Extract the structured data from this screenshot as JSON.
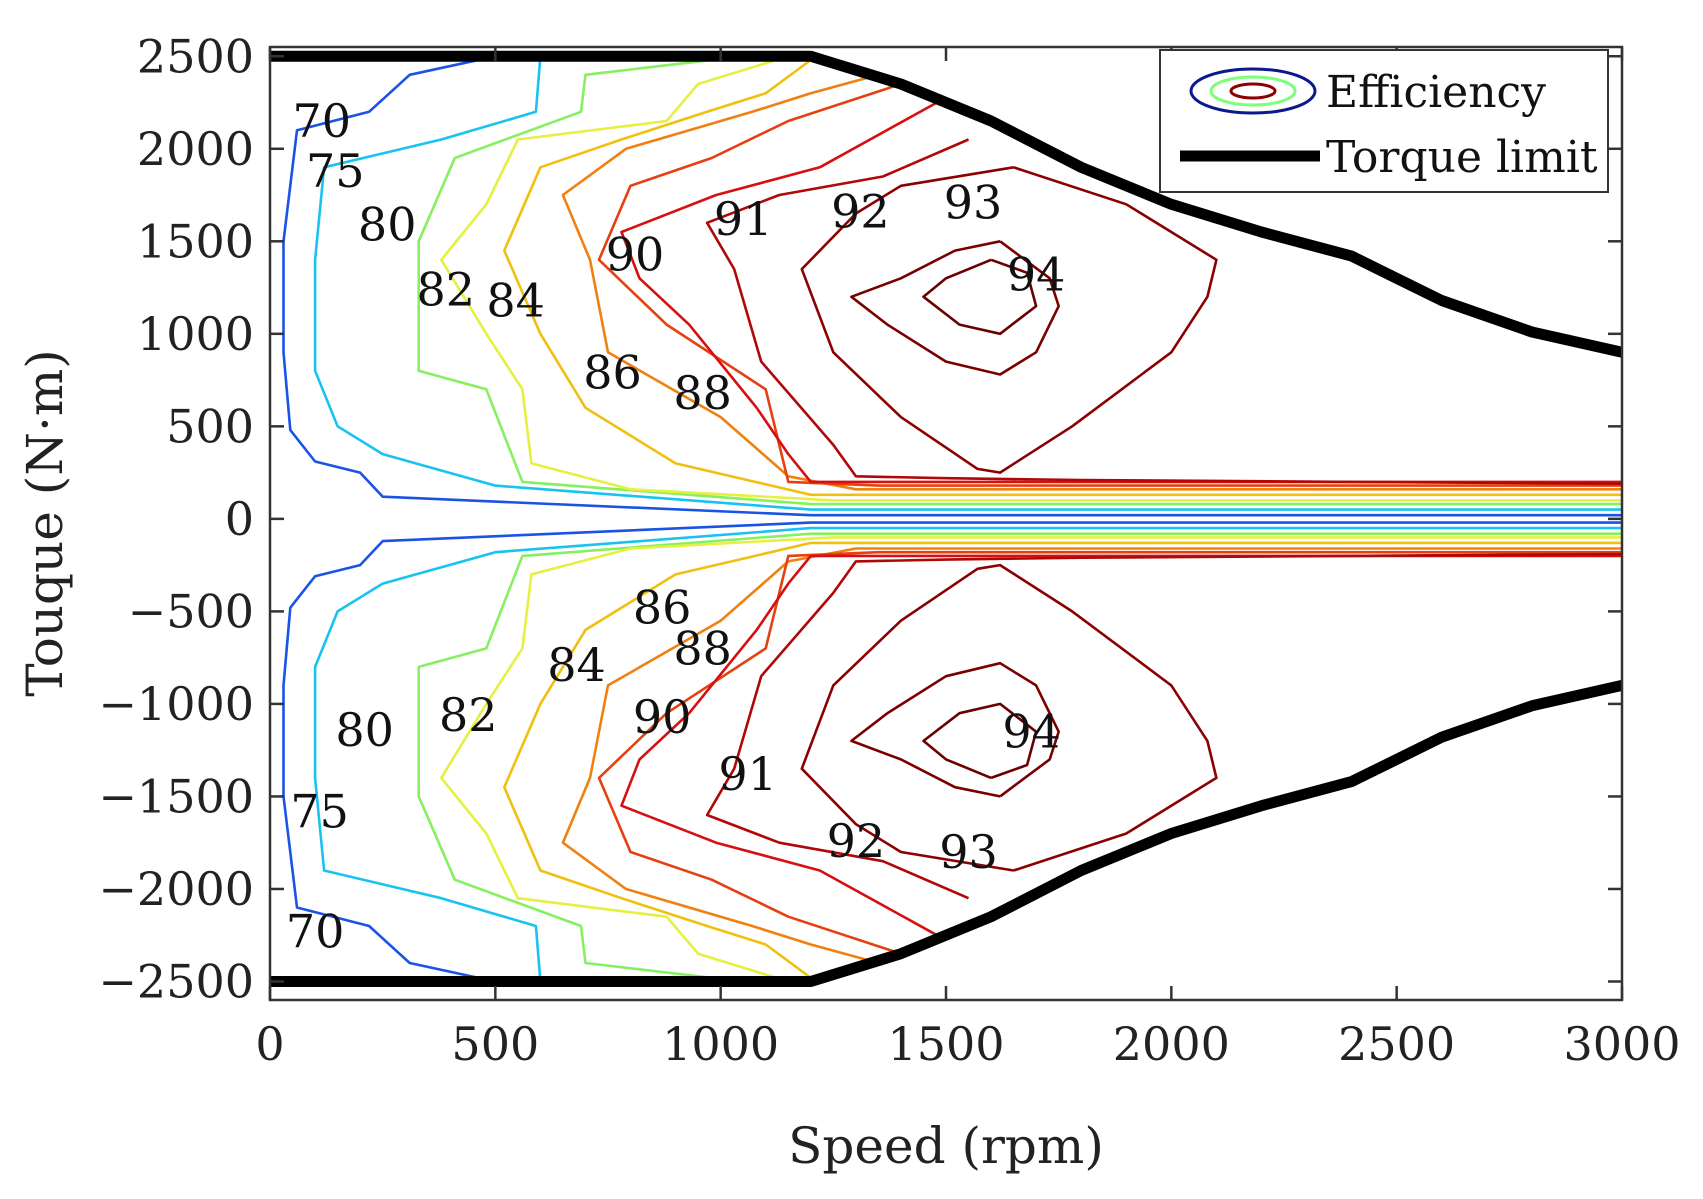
{
  "chart_data": {
    "type": "contour",
    "xlabel": "Speed (rpm)",
    "ylabel": "Touque (N·m)",
    "xlim": [
      0,
      3000
    ],
    "ylim": [
      -2600,
      2550
    ],
    "x_ticks": [
      0,
      500,
      1000,
      1500,
      2000,
      2500,
      3000
    ],
    "y_ticks": [
      2500,
      2000,
      1500,
      1000,
      500,
      0,
      -500,
      -1000,
      -1500,
      -2000,
      -2500
    ],
    "x_tick_labels": [
      "0",
      "500",
      "1000",
      "1500",
      "2000",
      "2500",
      "3000"
    ],
    "y_tick_labels": [
      "2500",
      "2000",
      "1500",
      "1000",
      "500",
      "0",
      "−500",
      "−1000",
      "−1500",
      "−2000",
      "−2500"
    ],
    "legend": {
      "position": "top-right",
      "entries": [
        {
          "label": "Efficiency",
          "kind": "ellipses",
          "colors": [
            "#0a1a8c",
            "#7cff79",
            "#8b0000"
          ]
        },
        {
          "label": "Torque limit",
          "kind": "line",
          "color": "#000000"
        }
      ]
    },
    "torque_limit": {
      "name": "Torque limit",
      "color": "#000000",
      "points": [
        [
          0,
          2500
        ],
        [
          1200,
          2500
        ],
        [
          1400,
          2350
        ],
        [
          1600,
          2150
        ],
        [
          1800,
          1900
        ],
        [
          2000,
          1700
        ],
        [
          2200,
          1550
        ],
        [
          2400,
          1420
        ],
        [
          2600,
          1180
        ],
        [
          2800,
          1010
        ],
        [
          3000,
          900
        ]
      ]
    },
    "contours": [
      {
        "level": 70,
        "color": "#1a53e6",
        "points": [
          [
            500,
            2500
          ],
          [
            310,
            2400
          ],
          [
            220,
            2200
          ],
          [
            60,
            2100
          ],
          [
            30,
            1500
          ],
          [
            30,
            900
          ],
          [
            45,
            480
          ],
          [
            100,
            310
          ],
          [
            200,
            250
          ],
          [
            250,
            120
          ],
          [
            1200,
            20
          ],
          [
            3000,
            20
          ]
        ]
      },
      {
        "level": 75,
        "color": "#19c3f0",
        "points": [
          [
            600,
            2500
          ],
          [
            590,
            2200
          ],
          [
            380,
            2050
          ],
          [
            120,
            1900
          ],
          [
            100,
            1400
          ],
          [
            100,
            800
          ],
          [
            150,
            500
          ],
          [
            250,
            350
          ],
          [
            500,
            180
          ],
          [
            1200,
            50
          ],
          [
            3000,
            50
          ]
        ]
      },
      {
        "level": 80,
        "color": "#86f060",
        "points": [
          [
            1050,
            2500
          ],
          [
            700,
            2400
          ],
          [
            690,
            2200
          ],
          [
            410,
            1950
          ],
          [
            330,
            1500
          ],
          [
            330,
            800
          ],
          [
            480,
            700
          ],
          [
            560,
            200
          ],
          [
            1200,
            80
          ],
          [
            3000,
            80
          ]
        ]
      },
      {
        "level": 82,
        "color": "#e6f040",
        "points": [
          [
            1150,
            2500
          ],
          [
            950,
            2350
          ],
          [
            880,
            2150
          ],
          [
            550,
            2050
          ],
          [
            480,
            1700
          ],
          [
            380,
            1400
          ],
          [
            480,
            1000
          ],
          [
            560,
            700
          ],
          [
            580,
            300
          ],
          [
            800,
            160
          ],
          [
            1250,
            100
          ],
          [
            3000,
            100
          ]
        ]
      },
      {
        "level": 84,
        "color": "#f0c010",
        "points": [
          [
            1200,
            2480
          ],
          [
            1100,
            2300
          ],
          [
            970,
            2200
          ],
          [
            780,
            2050
          ],
          [
            600,
            1900
          ],
          [
            520,
            1450
          ],
          [
            600,
            1000
          ],
          [
            700,
            600
          ],
          [
            900,
            300
          ],
          [
            1200,
            130
          ],
          [
            3000,
            130
          ]
        ]
      },
      {
        "level": 86,
        "color": "#f08010",
        "points": [
          [
            1350,
            2400
          ],
          [
            1200,
            2300
          ],
          [
            1070,
            2200
          ],
          [
            790,
            2000
          ],
          [
            650,
            1750
          ],
          [
            710,
            1400
          ],
          [
            750,
            900
          ],
          [
            1000,
            550
          ],
          [
            1150,
            230
          ],
          [
            1300,
            160
          ],
          [
            3000,
            160
          ]
        ]
      },
      {
        "level": 88,
        "color": "#e64010",
        "points": [
          [
            1400,
            2350
          ],
          [
            1150,
            2150
          ],
          [
            980,
            1950
          ],
          [
            800,
            1800
          ],
          [
            730,
            1400
          ],
          [
            880,
            1050
          ],
          [
            1100,
            700
          ],
          [
            1150,
            200
          ],
          [
            1350,
            180
          ],
          [
            3000,
            180
          ]
        ]
      },
      {
        "level": 90,
        "color": "#d61010",
        "points": [
          [
            1480,
            2250
          ],
          [
            1220,
            1900
          ],
          [
            990,
            1750
          ],
          [
            780,
            1550
          ],
          [
            820,
            1300
          ],
          [
            930,
            1050
          ],
          [
            1080,
            600
          ],
          [
            1150,
            350
          ],
          [
            1200,
            200
          ],
          [
            3000,
            200
          ]
        ]
      },
      {
        "level": 91,
        "color": "#b00808",
        "points": [
          [
            1550,
            2050
          ],
          [
            1360,
            1850
          ],
          [
            1130,
            1750
          ],
          [
            970,
            1600
          ],
          [
            1030,
            1350
          ],
          [
            1090,
            850
          ],
          [
            1250,
            400
          ],
          [
            1300,
            230
          ],
          [
            1500,
            220
          ],
          [
            1800,
            210
          ],
          [
            2400,
            200
          ],
          [
            3000,
            190
          ]
        ]
      },
      {
        "level": 92,
        "color": "#8b0000",
        "points": [
          [
            1650,
            1900
          ],
          [
            1400,
            1800
          ],
          [
            1300,
            1650
          ],
          [
            1180,
            1350
          ],
          [
            1250,
            900
          ],
          [
            1400,
            550
          ],
          [
            1570,
            270
          ],
          [
            1620,
            250
          ],
          [
            1780,
            500
          ],
          [
            2000,
            900
          ],
          [
            2080,
            1200
          ],
          [
            2100,
            1400
          ],
          [
            1900,
            1700
          ],
          [
            1650,
            1900
          ]
        ]
      },
      {
        "level": 93,
        "color": "#7a0000",
        "points": [
          [
            1620,
            1500
          ],
          [
            1520,
            1450
          ],
          [
            1400,
            1300
          ],
          [
            1290,
            1200
          ],
          [
            1370,
            1050
          ],
          [
            1500,
            850
          ],
          [
            1620,
            780
          ],
          [
            1700,
            900
          ],
          [
            1750,
            1150
          ],
          [
            1730,
            1300
          ],
          [
            1620,
            1500
          ]
        ]
      },
      {
        "level": 94,
        "color": "#6a0000",
        "points": [
          [
            1600,
            1400
          ],
          [
            1500,
            1300
          ],
          [
            1450,
            1200
          ],
          [
            1530,
            1050
          ],
          [
            1620,
            1000
          ],
          [
            1700,
            1150
          ],
          [
            1680,
            1330
          ],
          [
            1600,
            1400
          ]
        ]
      }
    ],
    "contour_labels_upper": [
      {
        "text": "70",
        "x": 115,
        "y": 2150
      },
      {
        "text": "75",
        "x": 145,
        "y": 1880
      },
      {
        "text": "80",
        "x": 260,
        "y": 1590
      },
      {
        "text": "82",
        "x": 390,
        "y": 1240
      },
      {
        "text": "84",
        "x": 545,
        "y": 1180
      },
      {
        "text": "86",
        "x": 760,
        "y": 790
      },
      {
        "text": "88",
        "x": 960,
        "y": 680
      },
      {
        "text": "90",
        "x": 810,
        "y": 1430
      },
      {
        "text": "91",
        "x": 1050,
        "y": 1620
      },
      {
        "text": "92",
        "x": 1310,
        "y": 1660
      },
      {
        "text": "93",
        "x": 1560,
        "y": 1710
      },
      {
        "text": "94",
        "x": 1700,
        "y": 1320
      }
    ],
    "contour_labels_lower": [
      {
        "text": "86",
        "x": 870,
        "y": -480
      },
      {
        "text": "88",
        "x": 960,
        "y": -700
      },
      {
        "text": "84",
        "x": 680,
        "y": -790
      },
      {
        "text": "90",
        "x": 870,
        "y": -1070
      },
      {
        "text": "82",
        "x": 440,
        "y": -1060
      },
      {
        "text": "80",
        "x": 210,
        "y": -1140
      },
      {
        "text": "91",
        "x": 1060,
        "y": -1380
      },
      {
        "text": "94",
        "x": 1690,
        "y": -1150
      },
      {
        "text": "75",
        "x": 110,
        "y": -1580
      },
      {
        "text": "92",
        "x": 1300,
        "y": -1740
      },
      {
        "text": "93",
        "x": 1550,
        "y": -1800
      },
      {
        "text": "70",
        "x": 100,
        "y": -2230
      }
    ]
  }
}
